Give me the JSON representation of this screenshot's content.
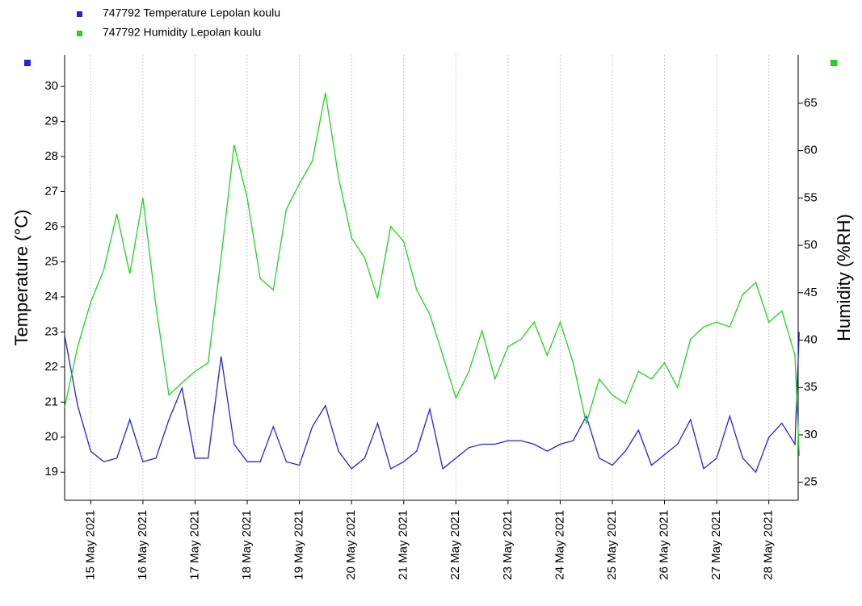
{
  "chart_data": {
    "type": "line",
    "x": [
      "2021-05-14T12:00",
      "2021-05-14T18:00",
      "2021-05-15T00:00",
      "2021-05-15T06:00",
      "2021-05-15T12:00",
      "2021-05-15T18:00",
      "2021-05-16T00:00",
      "2021-05-16T06:00",
      "2021-05-16T12:00",
      "2021-05-16T18:00",
      "2021-05-17T00:00",
      "2021-05-17T06:00",
      "2021-05-17T12:00",
      "2021-05-17T18:00",
      "2021-05-18T00:00",
      "2021-05-18T06:00",
      "2021-05-18T12:00",
      "2021-05-18T18:00",
      "2021-05-19T00:00",
      "2021-05-19T06:00",
      "2021-05-19T12:00",
      "2021-05-19T18:00",
      "2021-05-20T00:00",
      "2021-05-20T06:00",
      "2021-05-20T12:00",
      "2021-05-20T18:00",
      "2021-05-21T00:00",
      "2021-05-21T06:00",
      "2021-05-21T12:00",
      "2021-05-21T18:00",
      "2021-05-22T00:00",
      "2021-05-22T06:00",
      "2021-05-22T12:00",
      "2021-05-22T18:00",
      "2021-05-23T00:00",
      "2021-05-23T06:00",
      "2021-05-23T12:00",
      "2021-05-23T18:00",
      "2021-05-24T00:00",
      "2021-05-24T06:00",
      "2021-05-24T12:00",
      "2021-05-24T18:00",
      "2021-05-25T00:00",
      "2021-05-25T06:00",
      "2021-05-25T12:00",
      "2021-05-25T18:00",
      "2021-05-26T00:00",
      "2021-05-26T06:00",
      "2021-05-26T12:00",
      "2021-05-26T18:00",
      "2021-05-27T00:00",
      "2021-05-27T06:00",
      "2021-05-27T12:00",
      "2021-05-27T18:00",
      "2021-05-28T00:00",
      "2021-05-28T06:00",
      "2021-05-28T12:00",
      "2021-05-28T14:00"
    ],
    "series": [
      {
        "name": "747792  Temperature Lepolan koulu",
        "color": "#2323d9",
        "axis": "y",
        "values": [
          22.9,
          20.9,
          19.6,
          19.3,
          19.4,
          20.5,
          19.3,
          19.4,
          20.5,
          21.4,
          19.4,
          19.4,
          22.3,
          19.8,
          19.3,
          19.3,
          20.3,
          19.3,
          19.2,
          20.3,
          20.9,
          19.6,
          19.1,
          19.4,
          20.4,
          19.1,
          19.3,
          19.6,
          20.8,
          19.1,
          19.4,
          19.7,
          19.8,
          19.8,
          19.9,
          19.9,
          19.8,
          19.6,
          19.8,
          19.9,
          20.6,
          19.4,
          19.2,
          19.6,
          20.2,
          19.2,
          19.5,
          19.8,
          20.5,
          19.1,
          19.4,
          20.6,
          19.4,
          19.0,
          20.0,
          20.4,
          19.8,
          23.0
        ]
      },
      {
        "name": "747792  Humidity Lepolan koulu",
        "color": "#22d422",
        "axis": "y2",
        "values": [
          32.9,
          39.3,
          44,
          47.4,
          53.3,
          47,
          55,
          43.6,
          34.2,
          35.5,
          36.7,
          37.6,
          48.7,
          60.6,
          55,
          46.5,
          45.3,
          53.8,
          56.5,
          58.9,
          66.1,
          57.2,
          50.8,
          48.7,
          44.4,
          52,
          50.4,
          45.3,
          42.7,
          38.4,
          33.9,
          36.7,
          41,
          35.9,
          39.3,
          40.1,
          41.9,
          38.4,
          41.9,
          37.6,
          31.2,
          35.9,
          34.2,
          33.3,
          36.7,
          35.9,
          37.6,
          35,
          40.1,
          41.4,
          41.9,
          41.4,
          44.8,
          46.1,
          41.9,
          43.1,
          38.4,
          27.8
        ]
      }
    ],
    "ylabel": "Temperature (°C)",
    "y2label": "Humidity (%RH)",
    "xlim": [
      "2021-05-14T12:00",
      "2021-05-28T13:30"
    ],
    "xticks": [
      {
        "value": "2021-05-15T00:00",
        "label": "15 May 2021"
      },
      {
        "value": "2021-05-16T00:00",
        "label": "16 May 2021"
      },
      {
        "value": "2021-05-17T00:00",
        "label": "17 May 2021"
      },
      {
        "value": "2021-05-18T00:00",
        "label": "18 May 2021"
      },
      {
        "value": "2021-05-19T00:00",
        "label": "19 May 2021"
      },
      {
        "value": "2021-05-20T00:00",
        "label": "20 May 2021"
      },
      {
        "value": "2021-05-21T00:00",
        "label": "21 May 2021"
      },
      {
        "value": "2021-05-22T00:00",
        "label": "22 May 2021"
      },
      {
        "value": "2021-05-23T00:00",
        "label": "23 May 2021"
      },
      {
        "value": "2021-05-24T00:00",
        "label": "24 May 2021"
      },
      {
        "value": "2021-05-25T00:00",
        "label": "25 May 2021"
      },
      {
        "value": "2021-05-26T00:00",
        "label": "26 May 2021"
      },
      {
        "value": "2021-05-27T00:00",
        "label": "27 May 2021"
      },
      {
        "value": "2021-05-28T00:00",
        "label": "28 May 2021"
      }
    ],
    "ylim": [
      18.2,
      30.9
    ],
    "yticks": [
      19,
      20,
      21,
      22,
      23,
      24,
      25,
      26,
      27,
      28,
      29,
      30
    ],
    "y2lim": [
      23.1,
      70.1
    ],
    "y2ticks": [
      25,
      30,
      35,
      40,
      45,
      50,
      55,
      60,
      65
    ],
    "grid": "x",
    "legend": "top-left"
  }
}
